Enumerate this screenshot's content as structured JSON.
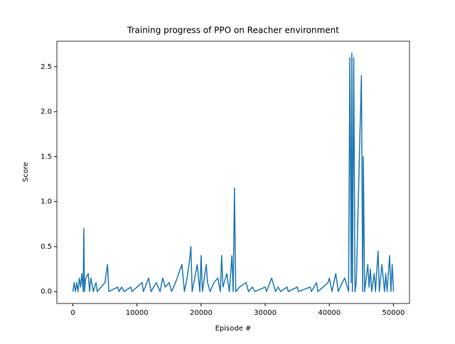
{
  "chart_data": {
    "type": "line",
    "title": "Training progress of PPO on Reacher environment",
    "x_label": "Episode #",
    "y_label": "Score",
    "x": [
      0,
      200,
      400,
      600,
      800,
      1000,
      1200,
      1400,
      1600,
      1700,
      1800,
      2000,
      2400,
      2600,
      2800,
      3200,
      3600,
      3800,
      5000,
      5200,
      5400,
      5600,
      7000,
      7200,
      7600,
      8000,
      9000,
      9200,
      10800,
      11000,
      11800,
      12200,
      13000,
      13600,
      14000,
      14400,
      15000,
      15400,
      16000,
      17000,
      17400,
      17800,
      18200,
      18400,
      18600,
      19400,
      19800,
      20000,
      20200,
      20800,
      21000,
      21400,
      22000,
      22600,
      23000,
      23200,
      23400,
      24000,
      24400,
      24800,
      25000,
      25200,
      25400,
      26000,
      27000,
      27400,
      28000,
      28400,
      30000,
      30200,
      31000,
      31600,
      32000,
      32400,
      33400,
      33600,
      35000,
      35200,
      37000,
      37200,
      38000,
      38200,
      39800,
      40000,
      40400,
      41000,
      41400,
      42000,
      42400,
      43000,
      43200,
      43400,
      43500,
      43600,
      43800,
      44000,
      44200,
      45000,
      45200,
      45300,
      45500,
      46000,
      46200,
      46400,
      46600,
      47000,
      47200,
      47600,
      47800,
      48200,
      48600,
      48800,
      49000,
      49400,
      49600,
      49800,
      50000
    ],
    "series": [
      {
        "name": "Score",
        "color": "#1f77b4",
        "values": [
          0,
          0.1,
          0,
          0.1,
          0,
          0.15,
          0.05,
          0.2,
          0,
          0.7,
          0,
          0.15,
          0.2,
          0,
          0.15,
          0,
          0.1,
          0,
          0.1,
          0.2,
          0.3,
          0,
          0.05,
          0,
          0.05,
          0,
          0.05,
          0,
          0.1,
          0,
          0.15,
          0,
          0.1,
          0,
          0.15,
          0.05,
          0.1,
          0,
          0.1,
          0.3,
          0,
          0.15,
          0.35,
          0.5,
          0,
          0.3,
          0,
          0.4,
          0,
          0.3,
          0.1,
          0,
          0.1,
          0.15,
          0,
          0.4,
          0.05,
          0.2,
          0,
          0.4,
          0,
          1.15,
          0,
          0.05,
          0.1,
          0,
          0.05,
          0,
          0.05,
          0,
          0.15,
          0,
          0.05,
          0,
          0.05,
          0,
          0.05,
          0,
          0.05,
          0,
          0.1,
          0,
          0.1,
          0.15,
          0,
          0.2,
          0,
          0.1,
          0.15,
          0,
          2.6,
          0.1,
          2.65,
          0,
          2.6,
          0,
          0.1,
          2.4,
          0,
          1.5,
          0,
          0.3,
          0.05,
          0.25,
          0,
          0.2,
          0,
          0.45,
          0,
          0.3,
          0,
          0.2,
          0,
          0.4,
          0,
          0.3,
          0
        ]
      }
    ],
    "xlim": [
      -2500,
      52500
    ],
    "xticks": [
      0,
      10000,
      20000,
      30000,
      40000,
      50000
    ],
    "ylim": [
      -0.1325,
      2.7825
    ],
    "yticks": [
      {
        "value": 0,
        "label": "0.0"
      },
      0.5,
      {
        "value": 1,
        "label": "1.0"
      },
      1.5,
      {
        "value": 2,
        "label": "2.0"
      },
      2.5
    ]
  }
}
